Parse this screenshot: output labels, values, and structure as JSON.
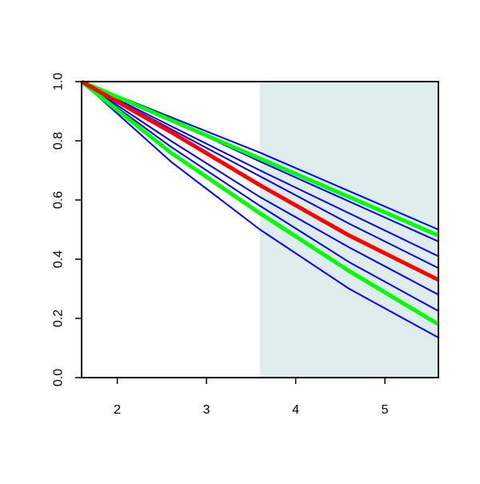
{
  "chart_data": {
    "type": "line",
    "x": [
      1.6,
      2.6,
      3.6,
      4.6,
      5.6
    ],
    "series": [
      {
        "color": "#0000ff",
        "values": [
          1,
          0.88,
          0.76,
          0.63,
          0.5
        ]
      },
      {
        "color": "#0000ff",
        "values": [
          1,
          0.87,
          0.73,
          0.595,
          0.46
        ]
      },
      {
        "color": "#0000ff",
        "values": [
          1,
          0.85,
          0.7,
          0.555,
          0.41
        ]
      },
      {
        "color": "#0000ff",
        "values": [
          1,
          0.84,
          0.68,
          0.52,
          0.37
        ]
      },
      {
        "color": "#0000ff",
        "values": [
          1,
          0.8,
          0.61,
          0.44,
          0.28
        ]
      },
      {
        "color": "#0000ff",
        "values": [
          1,
          0.78,
          0.58,
          0.39,
          0.225
        ]
      },
      {
        "color": "#0000ff",
        "values": [
          1,
          0.73,
          0.5,
          0.3,
          0.135
        ]
      },
      {
        "color": "#00ff00",
        "values": [
          1,
          0.87,
          0.74,
          0.61,
          0.48
        ]
      },
      {
        "color": "#00ff00",
        "values": [
          1,
          0.76,
          0.555,
          0.36,
          0.18
        ]
      },
      {
        "color": "#ff0000",
        "values": [
          1,
          0.83,
          0.65,
          0.48,
          0.33
        ]
      }
    ],
    "shade": {
      "x": [
        3.6,
        5.6
      ],
      "color": "#dfecec"
    },
    "xlim": [
      1.6,
      5.6
    ],
    "ylim": [
      0,
      1
    ],
    "xticks": [
      2,
      3,
      4,
      5
    ],
    "yticks": [
      {
        "value": 0,
        "label": "0.0"
      },
      {
        "value": 0.2,
        "label": "0.2"
      },
      {
        "value": 0.4,
        "label": "0.4"
      },
      {
        "value": 0.6,
        "label": "0.6"
      },
      {
        "value": 0.8,
        "label": "0.8"
      },
      {
        "value": 1,
        "label": "1.0"
      }
    ]
  }
}
